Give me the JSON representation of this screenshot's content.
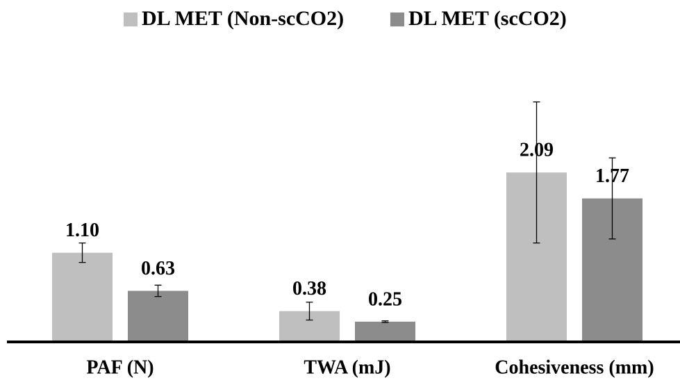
{
  "chart_data": {
    "type": "bar",
    "categories": [
      "PAF (N)",
      "TWA (mJ)",
      "Cohesiveness (mm)"
    ],
    "series": [
      {
        "name": "DL MET (Non-scCO2)",
        "color": "#bfbfbf",
        "values": [
          1.1,
          0.38,
          2.09
        ],
        "value_labels": [
          "1.10",
          "0.38",
          "2.09"
        ],
        "errors": [
          0.12,
          0.11,
          0.87
        ]
      },
      {
        "name": "DL MET (scCO2)",
        "color": "#8c8c8c",
        "values": [
          0.63,
          0.25,
          1.77
        ],
        "value_labels": [
          "0.63",
          "0.25",
          "1.77"
        ],
        "errors": [
          0.07,
          0.01,
          0.5
        ]
      }
    ],
    "ylim": [
      0,
      3
    ],
    "legend": "top"
  }
}
